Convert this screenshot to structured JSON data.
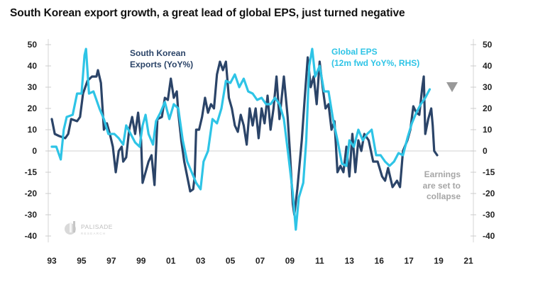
{
  "chart_data": {
    "type": "line",
    "title": "South Korean export growth, a great lead of global EPS, just turned negative",
    "x_tick_labels": [
      "93",
      "95",
      "97",
      "99",
      "01",
      "03",
      "05",
      "07",
      "09",
      "11",
      "13",
      "16",
      "17",
      "19",
      "21"
    ],
    "y_tick_labels": [
      "50",
      "40",
      "30",
      "20",
      "10",
      "0",
      "-15",
      "-20",
      "-30",
      "-40"
    ],
    "ylim": [
      -40,
      50
    ],
    "xlim": [
      1993,
      2021
    ],
    "grid": "zero line only",
    "series": [
      {
        "name": "South Korean Exports (YoY%)",
        "color": "#2b4468",
        "axis": "left",
        "x": [
          1993.0,
          1993.2,
          1993.5,
          1993.9,
          1994.1,
          1994.3,
          1994.7,
          1994.9,
          1995.1,
          1995.4,
          1995.7,
          1996.0,
          1996.1,
          1996.3,
          1996.5,
          1996.7,
          1996.9,
          1997.1,
          1997.3,
          1997.5,
          1997.7,
          1997.8,
          1998.0,
          1998.2,
          1998.4,
          1998.6,
          1998.8,
          1999.0,
          1999.1,
          1999.3,
          1999.5,
          1999.7,
          1999.9,
          2000.1,
          2000.4,
          2000.6,
          2000.8,
          2001.0,
          2001.2,
          2001.4,
          2001.5,
          2001.7,
          2001.9,
          2002.1,
          2002.3,
          2002.5,
          2002.6,
          2002.7,
          2002.9,
          2003.1,
          2003.3,
          2003.5,
          2003.7,
          2003.9,
          2004.1,
          2004.3,
          2004.5,
          2004.7,
          2004.9,
          2005.1,
          2005.3,
          2005.5,
          2005.7,
          2005.9,
          2006.1,
          2006.3,
          2006.5,
          2006.7,
          2006.9,
          2007.1,
          2007.3,
          2007.5,
          2007.7,
          2007.9,
          2008.1,
          2008.3,
          2008.6,
          2008.85,
          2009.0,
          2009.2,
          2009.3,
          2009.5,
          2009.8,
          2010.0,
          2010.2,
          2010.4,
          2010.6,
          2010.8,
          2011.0,
          2011.2,
          2011.4,
          2011.6,
          2011.8,
          2012.0,
          2012.2,
          2012.4,
          2012.6,
          2012.8,
          2013.0,
          2013.2,
          2013.4,
          2013.6,
          2013.8,
          2014.0,
          2014.3,
          2014.6,
          2014.9,
          2015.2,
          2015.4,
          2015.6,
          2015.9,
          2016.2,
          2016.4,
          2016.6,
          2016.9,
          2017.1,
          2017.3,
          2017.5,
          2017.7,
          2017.9,
          2018.0,
          2018.1,
          2018.3,
          2018.5,
          2018.6,
          2018.7,
          2018.9
        ],
        "y": [
          15,
          8,
          7,
          6,
          8,
          15,
          14,
          16,
          27,
          33,
          35,
          35,
          38,
          32,
          10,
          13,
          8,
          2,
          -10,
          0,
          2,
          -5,
          -3,
          10,
          16,
          8,
          18,
          5,
          -15,
          -10,
          -5,
          -2,
          -16,
          15,
          16,
          25,
          24,
          34,
          25,
          28,
          18,
          5,
          -5,
          -12,
          -19,
          -18,
          -12,
          10,
          10,
          16,
          25,
          18,
          22,
          20,
          36,
          42,
          38,
          42,
          25,
          20,
          12,
          9,
          17,
          12,
          3,
          20,
          12,
          20,
          6,
          20,
          13,
          26,
          10,
          20,
          35,
          15,
          35,
          16,
          0,
          -25,
          -30,
          -18,
          5,
          25,
          44,
          30,
          35,
          22,
          42,
          30,
          20,
          22,
          10,
          14,
          -10,
          -7,
          -10,
          2,
          -12,
          8,
          -10,
          5,
          0,
          8,
          5,
          -5,
          -5,
          -12,
          -14,
          -8,
          -17,
          -14,
          -17,
          0,
          5,
          10,
          21,
          18,
          17,
          30,
          35,
          8,
          15,
          20,
          12,
          0,
          -2
        ]
      },
      {
        "name": "Global EPS (12m fwd YoY%, RHS)",
        "color": "#2ec4e6",
        "axis": "right",
        "x": [
          1993.0,
          1993.3,
          1993.6,
          1993.8,
          1994.0,
          1994.4,
          1994.7,
          1995.0,
          1995.2,
          1995.3,
          1995.5,
          1995.8,
          1996.2,
          1996.5,
          1996.8,
          1997.2,
          1997.5,
          1997.8,
          1998.0,
          1998.3,
          1998.6,
          1998.9,
          1999.1,
          1999.3,
          1999.5,
          1999.8,
          2000.0,
          2000.3,
          2000.6,
          2000.9,
          2001.2,
          2001.5,
          2001.8,
          2002.1,
          2002.4,
          2002.7,
          2003.0,
          2003.2,
          2003.5,
          2003.8,
          2004.1,
          2004.4,
          2004.7,
          2005.0,
          2005.3,
          2005.6,
          2005.9,
          2006.2,
          2006.5,
          2006.8,
          2007.1,
          2007.4,
          2007.7,
          2008.0,
          2008.3,
          2008.6,
          2008.9,
          2009.2,
          2009.4,
          2009.6,
          2009.9,
          2010.1,
          2010.3,
          2010.5,
          2010.7,
          2011.0,
          2011.3,
          2011.6,
          2011.9,
          2012.2,
          2012.5,
          2012.8,
          2013.0,
          2013.3,
          2013.6,
          2013.9,
          2014.2,
          2014.5,
          2014.8,
          2015.1,
          2015.4,
          2015.7,
          2016.0,
          2016.3,
          2016.6,
          2016.9,
          2017.2,
          2017.5,
          2017.8,
          2018.1,
          2018.4
        ],
        "y": [
          2,
          2,
          -4,
          10,
          16,
          17,
          27,
          27,
          45,
          48,
          27,
          28,
          20,
          15,
          8,
          8,
          6,
          3,
          12,
          8,
          4,
          2,
          12,
          17,
          8,
          3,
          14,
          18,
          23,
          15,
          22,
          20,
          5,
          -5,
          -10,
          -15,
          -18,
          -5,
          0,
          15,
          13,
          20,
          33,
          32,
          36,
          30,
          34,
          28,
          27,
          24,
          25,
          22,
          22,
          25,
          22,
          15,
          -2,
          -20,
          -37,
          -22,
          -15,
          5,
          40,
          48,
          35,
          40,
          28,
          28,
          15,
          5,
          -6,
          -7,
          5,
          2,
          10,
          5,
          8,
          10,
          -2,
          -2,
          -5,
          -7,
          -5,
          -1,
          -2,
          6,
          13,
          18,
          22,
          25,
          29
        ]
      }
    ],
    "annotations": {
      "exports_label": [
        "South Korean",
        "Exports (YoY%)"
      ],
      "eps_label": [
        "Global EPS",
        "(12m fwd YoY%, RHS)"
      ],
      "note": [
        "Earnings",
        "are set to",
        "collapse"
      ],
      "note_color": "#a6a6a6",
      "marker": "down-triangle"
    },
    "watermark": "PALISADE RESEARCH"
  }
}
